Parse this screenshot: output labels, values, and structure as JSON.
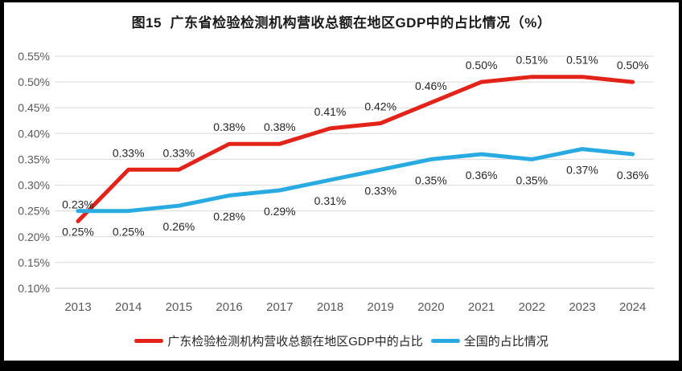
{
  "title": "图15  广东省检验检测机构营收总额在地区GDP中的占比情况（%）",
  "chart_data": {
    "type": "line",
    "title": "图15  广东省检验检测机构营收总额在地区GDP中的占比情况（%）",
    "categories": [
      "2013",
      "2014",
      "2015",
      "2016",
      "2017",
      "2018",
      "2019",
      "2020",
      "2021",
      "2022",
      "2023",
      "2024"
    ],
    "series": [
      {
        "name": "广东检验检测机构营收总额在地区GDP中的占比",
        "color": "#E2231A",
        "values": [
          0.23,
          0.33,
          0.33,
          0.38,
          0.38,
          0.41,
          0.42,
          0.46,
          0.5,
          0.51,
          0.51,
          0.5
        ],
        "data_labels": [
          "0.23%",
          "0.33%",
          "0.33%",
          "0.38%",
          "0.38%",
          "0.41%",
          "0.42%",
          "0.46%",
          "0.50%",
          "0.51%",
          "0.51%",
          "0.50%"
        ],
        "label_position": "above"
      },
      {
        "name": "全国的占比情况",
        "color": "#29ABE2",
        "values": [
          0.25,
          0.25,
          0.26,
          0.28,
          0.29,
          0.31,
          0.33,
          0.35,
          0.36,
          0.35,
          0.37,
          0.36
        ],
        "data_labels": [
          "0.25%",
          "0.25%",
          "0.26%",
          "0.28%",
          "0.29%",
          "0.31%",
          "0.33%",
          "0.35%",
          "0.36%",
          "0.35%",
          "0.37%",
          "0.36%"
        ],
        "label_position": "below"
      }
    ],
    "y_axis": {
      "min": 0.1,
      "max": 0.55,
      "step": 0.05,
      "tick_labels": [
        "0.55%",
        "0.50%",
        "0.45%",
        "0.40%",
        "0.35%",
        "0.30%",
        "0.25%",
        "0.20%",
        "0.15%",
        "0.10%"
      ],
      "format": "percent"
    },
    "x_axis": {
      "labels": [
        "2013",
        "2014",
        "2015",
        "2016",
        "2017",
        "2018",
        "2019",
        "2020",
        "2021",
        "2022",
        "2023",
        "2024"
      ]
    },
    "grid": true,
    "legend_position": "bottom",
    "colors": {
      "gridline": "#D9D9D9",
      "axis_line": "#C6C6C6",
      "axis_text": "#595959",
      "data_label_text": "#262626",
      "title_text": "#1A1A1A",
      "background": "#FFFFFF",
      "frame": "#000000"
    }
  }
}
